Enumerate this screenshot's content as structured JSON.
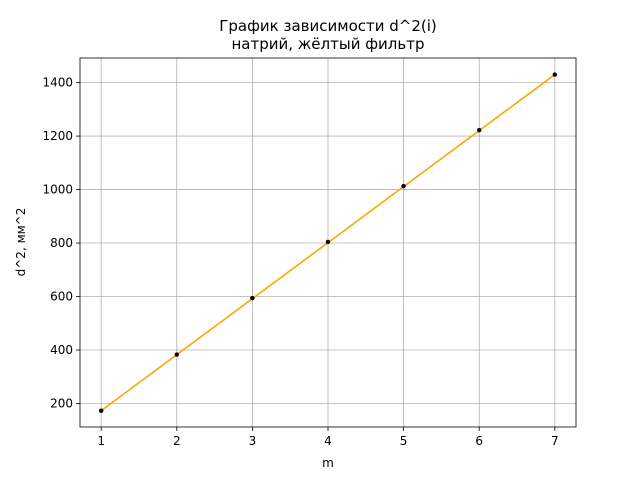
{
  "chart_data": {
    "type": "line",
    "title_line1": "График зависимости d^2(i)",
    "title_line2": "натрий, жёлтый фильтр",
    "xlabel": "m",
    "ylabel": "d^2, мм^2",
    "xlim": [
      0.72,
      7.28
    ],
    "ylim": [
      112,
      1492
    ],
    "xticks": [
      1,
      2,
      3,
      4,
      5,
      6,
      7
    ],
    "yticks": [
      200,
      400,
      600,
      800,
      1000,
      1200,
      1400
    ],
    "grid": true,
    "series": [
      {
        "kind": "points",
        "color": "#000000",
        "x": [
          1,
          2,
          3,
          4,
          5,
          6,
          7
        ],
        "y": [
          173,
          383,
          594,
          804,
          1013,
          1222,
          1430
        ]
      },
      {
        "kind": "fit-line",
        "color": "#ffa500",
        "x": [
          1,
          7
        ],
        "y": [
          173,
          1430
        ]
      }
    ]
  }
}
